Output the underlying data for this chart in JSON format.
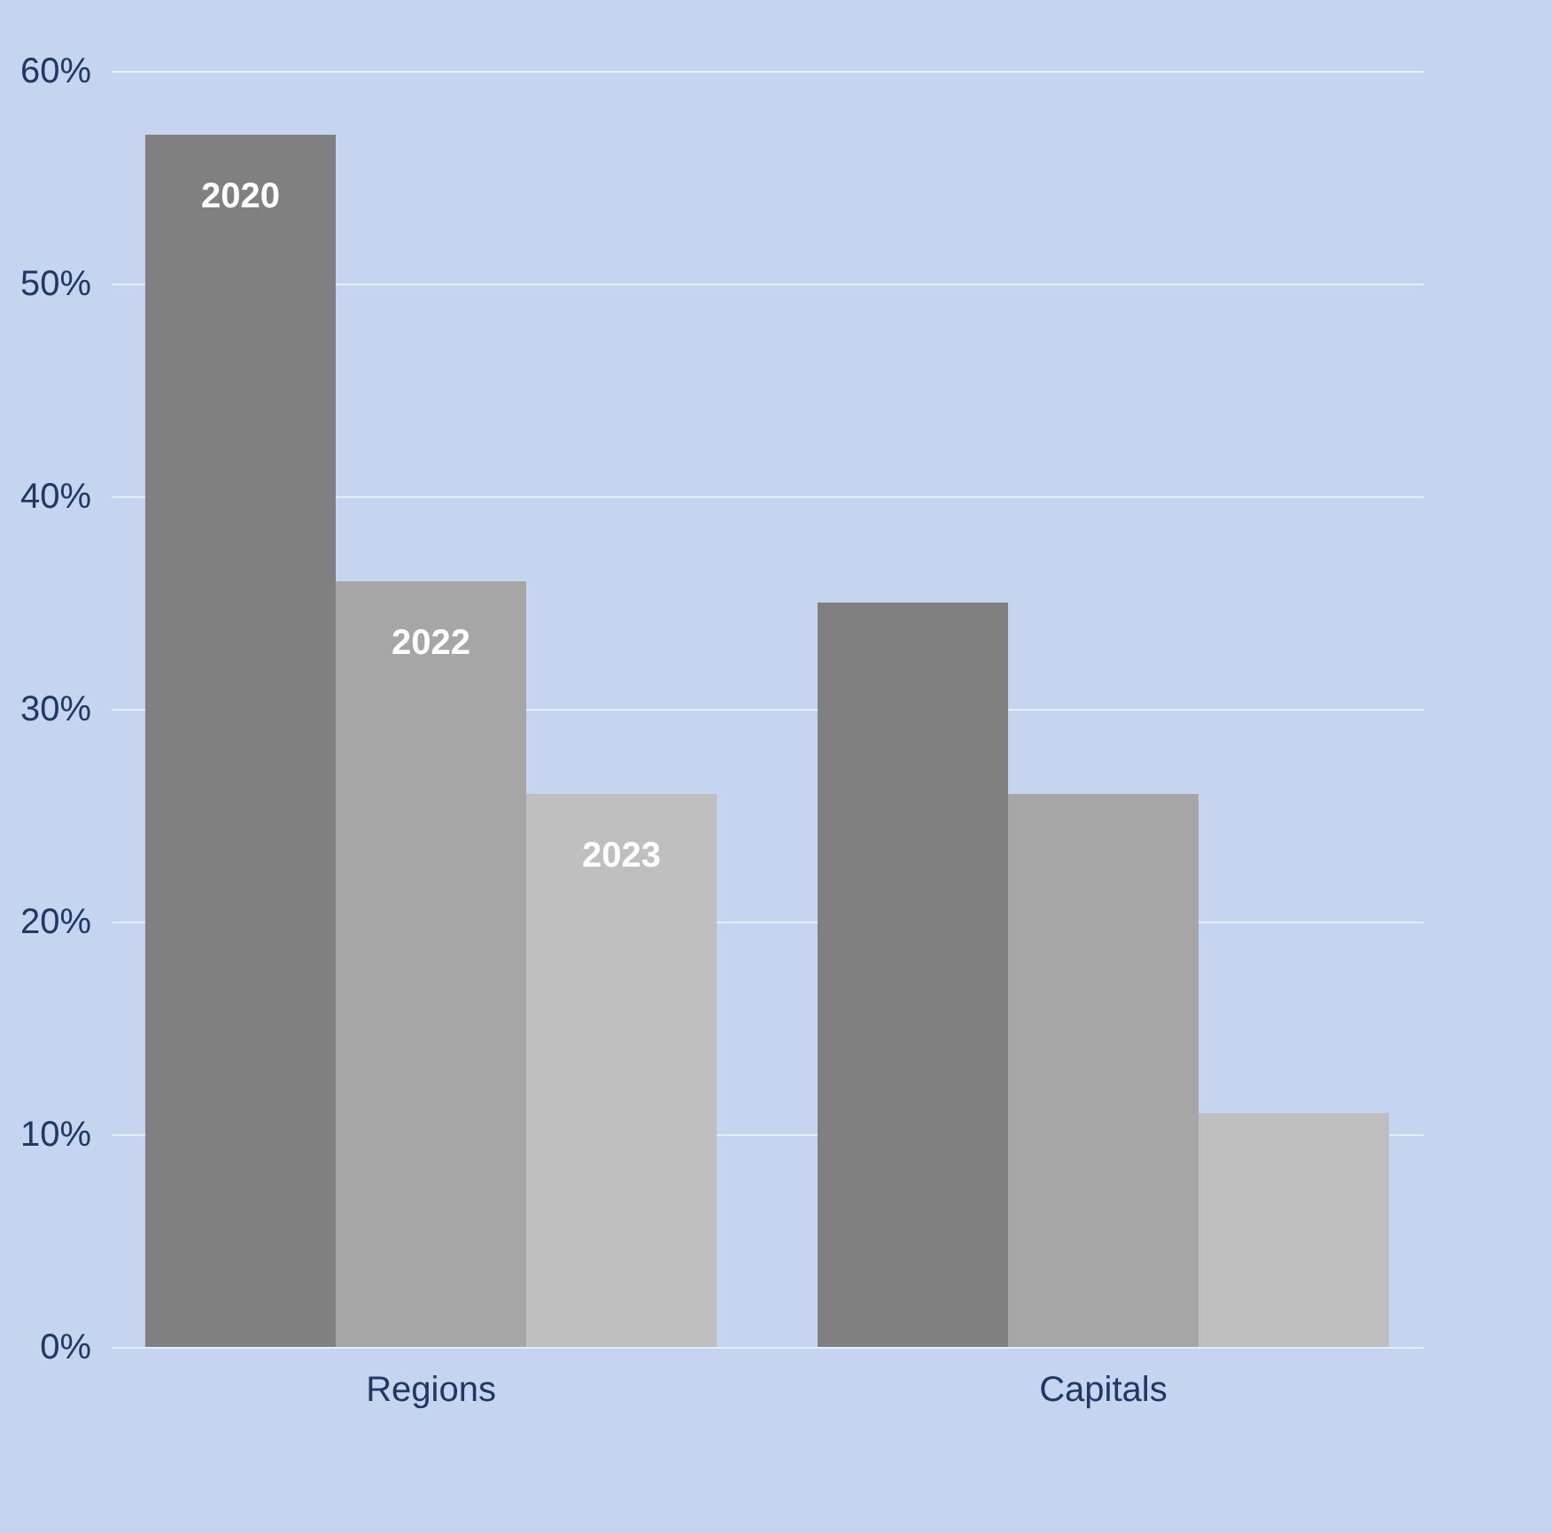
{
  "chart_data": {
    "type": "bar",
    "categories": [
      "Regions",
      "Capitals"
    ],
    "series": [
      {
        "name": "2020",
        "color": "#808080",
        "values": [
          57,
          35
        ]
      },
      {
        "name": "2022",
        "color": "#a6a6a6",
        "values": [
          36,
          26
        ]
      },
      {
        "name": "2023",
        "color": "#bfbfbf",
        "values": [
          26,
          11
        ]
      }
    ],
    "ylim": [
      0,
      60
    ],
    "yticks": [
      {
        "value": 0,
        "label": "0%"
      },
      {
        "value": 10,
        "label": "10%"
      },
      {
        "value": 20,
        "label": "20%"
      },
      {
        "value": 30,
        "label": "30%"
      },
      {
        "value": 40,
        "label": "40%"
      },
      {
        "value": 50,
        "label": "50%"
      },
      {
        "value": 60,
        "label": "60%"
      }
    ],
    "grid": "y",
    "legend": false
  }
}
